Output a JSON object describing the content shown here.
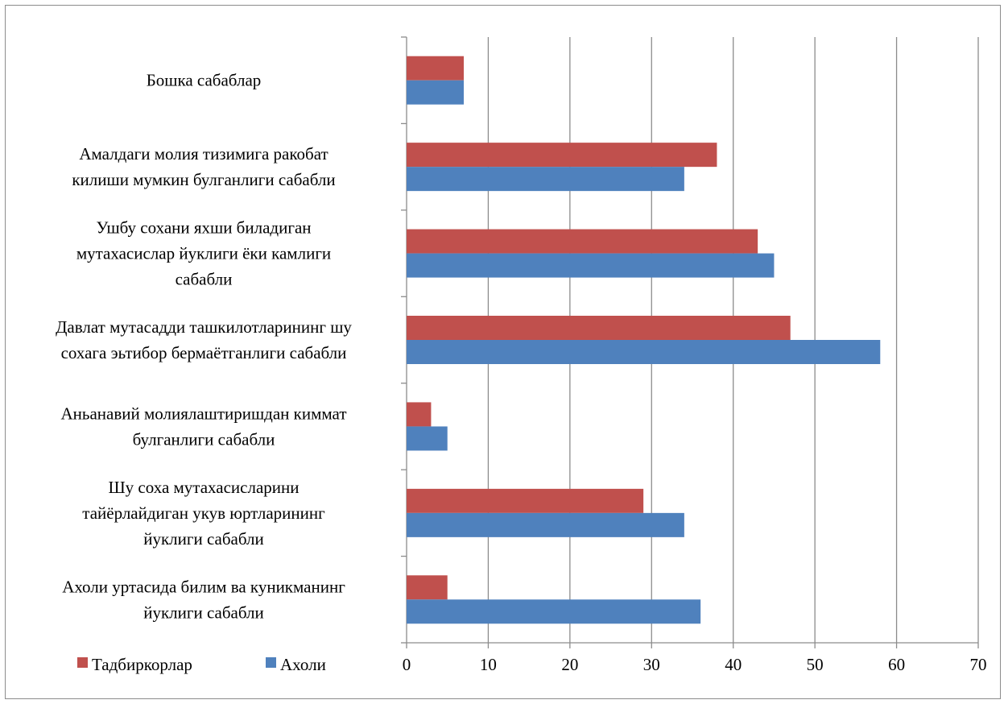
{
  "chart_data": {
    "type": "bar",
    "orientation": "horizontal",
    "categories": [
      [
        "Бошка сабаблар"
      ],
      [
        "Амалдаги молия тизимига ракобат",
        "килиши мумкин булганлиги сабабли"
      ],
      [
        "Ушбу сохани яхши биладиган",
        "мутахасислар йуклиги ёки камлиги",
        "сабабли"
      ],
      [
        "Давлат мутасадди ташкилотларининг шу",
        "сохага эьтибор бермаётганлиги сабабли"
      ],
      [
        "Аньанавий молиялаштиришдан киммат",
        "булганлиги сабабли"
      ],
      [
        "Шу соха мутахасисларини",
        "тайёрлайдиган укув юртларининг",
        "йуклиги сабабли"
      ],
      [
        "Ахоли уртасида билим ва куникманинг",
        "йуклиги сабабли"
      ]
    ],
    "series": [
      {
        "name": "Тадбиркорлар",
        "color": "#c0504d",
        "values": [
          7,
          38,
          43,
          47,
          3,
          29,
          5
        ]
      },
      {
        "name": "Ахоли",
        "color": "#4f81bd",
        "values": [
          7,
          34,
          45,
          58,
          5,
          34,
          36
        ]
      }
    ],
    "xlim": [
      0,
      70
    ],
    "xticks": [
      0,
      10,
      20,
      30,
      40,
      50,
      60,
      70
    ],
    "grid": true,
    "legend_position": "bottom-left",
    "title": "",
    "xlabel": "",
    "ylabel": ""
  }
}
